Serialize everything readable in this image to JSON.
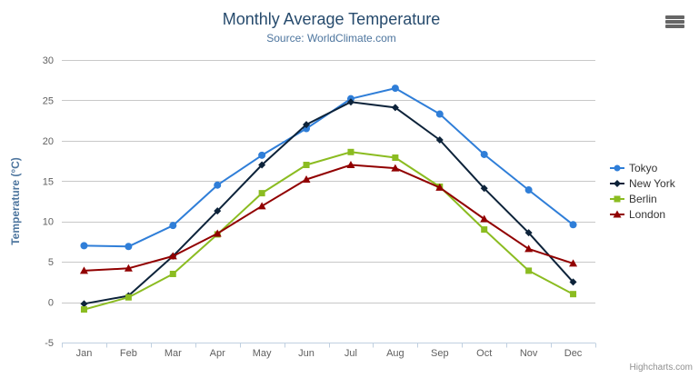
{
  "chart": {
    "title": "Monthly Average Temperature",
    "subtitle": "Source: WorldClimate.com",
    "credits": "Highcharts.com",
    "export_icon": "hamburger-icon"
  },
  "chart_data": {
    "type": "line",
    "title": "Monthly Average Temperature",
    "subtitle": "Source: WorldClimate.com",
    "categories": [
      "Jan",
      "Feb",
      "Mar",
      "Apr",
      "May",
      "Jun",
      "Jul",
      "Aug",
      "Sep",
      "Oct",
      "Nov",
      "Dec"
    ],
    "series": [
      {
        "name": "Tokyo",
        "color": "#2f7ed8",
        "marker": "circle",
        "values": [
          7.0,
          6.9,
          9.5,
          14.5,
          18.2,
          21.5,
          25.2,
          26.5,
          23.3,
          18.3,
          13.9,
          9.6
        ]
      },
      {
        "name": "New York",
        "color": "#0d233a",
        "marker": "diamond",
        "values": [
          -0.2,
          0.8,
          5.7,
          11.3,
          17.0,
          22.0,
          24.8,
          24.1,
          20.1,
          14.1,
          8.6,
          2.5
        ]
      },
      {
        "name": "Berlin",
        "color": "#8bbc21",
        "marker": "square",
        "values": [
          -0.9,
          0.6,
          3.5,
          8.4,
          13.5,
          17.0,
          18.6,
          17.9,
          14.3,
          9.0,
          3.9,
          1.0
        ]
      },
      {
        "name": "London",
        "color": "#910000",
        "marker": "triangle",
        "values": [
          3.9,
          4.2,
          5.7,
          8.5,
          11.9,
          15.2,
          17.0,
          16.6,
          14.2,
          10.3,
          6.6,
          4.8
        ]
      }
    ],
    "xlabel": "",
    "ylabel": "Temperature (°C)",
    "ylim": [
      -5,
      30
    ],
    "ytick_interval": 5,
    "yticks": [
      -5,
      0,
      5,
      10,
      15,
      20,
      25,
      30
    ],
    "grid": true,
    "legend_position": "right",
    "colors": {
      "grid_line": "#c8c8c8",
      "axis_line": "#c0d0e0",
      "axis_label": "#606060",
      "axis_title": "#4d759e",
      "title": "#274b6d",
      "subtitle": "#4d759e",
      "legend_text": "#333333",
      "credits_text": "#909090"
    }
  }
}
